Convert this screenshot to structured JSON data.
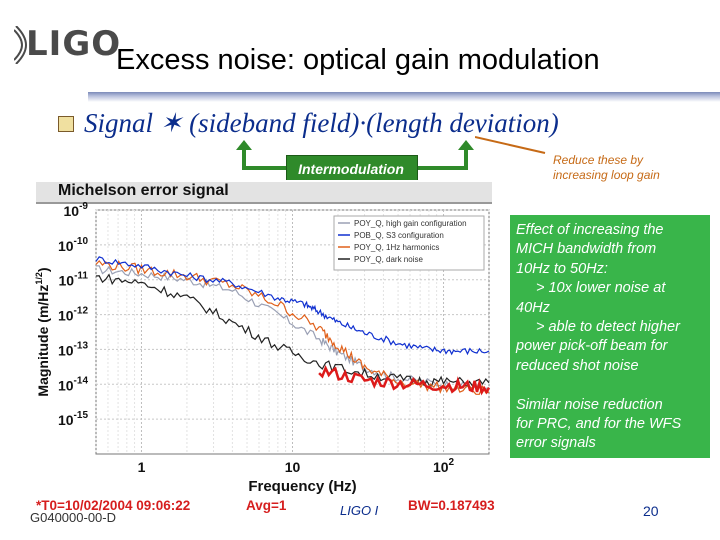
{
  "header": {
    "logo_text": "LIGO",
    "title": "Excess noise: optical gain modulation"
  },
  "signal": {
    "text": "Signal ✶ (sideband field)·(length deviation)",
    "intermodulation_label": "Intermodulation",
    "reduce_note": "Reduce these by increasing loop gain"
  },
  "chart": {
    "panel_title": "Michelson  error  signal",
    "status_date": "*T0=10/02/2004  09:06:22",
    "status_avg": "Avg=1",
    "status_bw": "BW=0.187493"
  },
  "chart_data": {
    "type": "line",
    "xlabel": "Frequency  (Hz)",
    "ylabel": "Magnitude  (m/Hz",
    "ylabel_sup": "1/2",
    "ylabel_close": ")",
    "x_scale": "log",
    "y_scale": "log",
    "xlim": [
      0.5,
      200
    ],
    "ylim": [
      1e-16,
      1e-09
    ],
    "x_ticks": [
      {
        "value": 1,
        "label": "1"
      },
      {
        "value": 10,
        "label": "10"
      },
      {
        "value": 100,
        "label": "10",
        "sup": "2"
      }
    ],
    "y_ticks": [
      {
        "value": 1e-09,
        "label": "10",
        "sup": "-9"
      },
      {
        "value": 1e-10,
        "label": "10",
        "sup": "-10"
      },
      {
        "value": 1e-11,
        "label": "10",
        "sup": "-11"
      },
      {
        "value": 1e-12,
        "label": "10",
        "sup": "-12"
      },
      {
        "value": 1e-13,
        "label": "10",
        "sup": "-13"
      },
      {
        "value": 1e-14,
        "label": "10",
        "sup": "-14"
      },
      {
        "value": 1e-15,
        "label": "10",
        "sup": "-15"
      }
    ],
    "grid": true,
    "legend_position": "top-right",
    "series": [
      {
        "name": "POY_Q, high gain configuration",
        "color": "#9aa0b4",
        "points": [
          [
            0.5,
            2e-11
          ],
          [
            1,
            1.5e-11
          ],
          [
            2,
            1e-11
          ],
          [
            4,
            5e-12
          ],
          [
            8,
            1e-12
          ],
          [
            15,
            2e-13
          ],
          [
            20,
            8e-14
          ],
          [
            30,
            3e-14
          ],
          [
            50,
            1.5e-14
          ],
          [
            100,
            1e-14
          ],
          [
            200,
            8e-15
          ]
        ]
      },
      {
        "name": "POB_Q, S3 configuration",
        "color": "#1030d0",
        "points": [
          [
            0.5,
            4e-11
          ],
          [
            1,
            2.5e-11
          ],
          [
            2,
            1.3e-11
          ],
          [
            4,
            8e-12
          ],
          [
            8,
            3e-12
          ],
          [
            12,
            2e-12
          ],
          [
            15,
            1.2e-12
          ],
          [
            20,
            6e-13
          ],
          [
            30,
            3e-13
          ],
          [
            50,
            1.5e-13
          ],
          [
            80,
            1e-13
          ],
          [
            120,
            9e-14
          ],
          [
            200,
            9e-14
          ]
        ]
      },
      {
        "name": "POY_Q, 1Hz harmonics",
        "color": "#e0601a",
        "points": [
          [
            0.5,
            3e-11
          ],
          [
            1,
            2e-11
          ],
          [
            2,
            1.3e-11
          ],
          [
            4,
            7e-12
          ],
          [
            8,
            2e-12
          ],
          [
            15,
            4e-13
          ],
          [
            20,
            1.3e-13
          ],
          [
            30,
            3e-14
          ],
          [
            50,
            1.2e-14
          ],
          [
            100,
            8e-15
          ],
          [
            200,
            6e-15
          ]
        ]
      },
      {
        "name": "POY_Q, dark noise",
        "color": "#222222",
        "points": [
          [
            0.5,
            1.2e-11
          ],
          [
            1,
            8e-12
          ],
          [
            2,
            3e-12
          ],
          [
            4,
            6e-13
          ],
          [
            8,
            1.2e-13
          ],
          [
            15,
            4e-14
          ],
          [
            30,
            2e-14
          ],
          [
            60,
            1.3e-14
          ],
          [
            100,
            1.2e-14
          ],
          [
            200,
            1.1e-14
          ]
        ]
      }
    ],
    "floor": {
      "name": "floor",
      "color": "#dd1a1a",
      "points": [
        [
          15,
          2.5e-14
        ],
        [
          30,
          1.3e-14
        ],
        [
          60,
          1e-14
        ],
        [
          120,
          9e-15
        ],
        [
          200,
          8e-15
        ]
      ]
    }
  },
  "note": {
    "lines": [
      {
        "text": "Effect of increasing the",
        "indent": false
      },
      {
        "text": "MICH bandwidth from",
        "indent": false
      },
      {
        "text": "10Hz to 50Hz:",
        "indent": false
      },
      {
        "text": "> 10x lower noise at",
        "indent": true
      },
      {
        "text": "40Hz",
        "indent": false
      },
      {
        "text": "> able to detect higher",
        "indent": true
      },
      {
        "text": "power pick-off beam for",
        "indent": false
      },
      {
        "text": "reduced shot noise",
        "indent": false
      },
      {
        "text": "",
        "indent": false
      },
      {
        "text": "Similar noise reduction",
        "indent": false
      },
      {
        "text": "for PRC, and for the WFS",
        "indent": false
      },
      {
        "text": "error signals",
        "indent": false
      }
    ]
  },
  "footer": {
    "doc_id": "G040000-00-D",
    "project": "LIGO I",
    "page": "20"
  },
  "colors": {
    "title_accent": "#0b2d8c",
    "note_bg": "#39b54a",
    "intermod_bg": "#2f8a2a",
    "reduce_note": "#c66a16",
    "status_red": "#d61e1e"
  }
}
